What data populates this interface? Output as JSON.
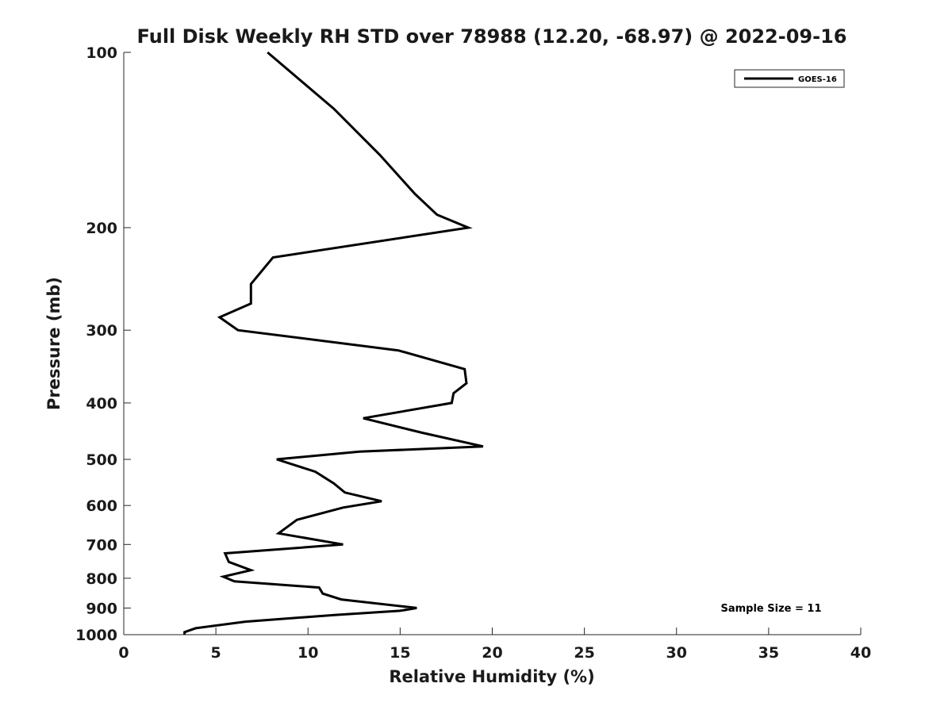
{
  "chart_data": {
    "type": "line",
    "title": "Full Disk Weekly RH STD over 78988 (12.20, -68.97) @ 2022-09-16",
    "xlabel": "Relative Humidity (%)",
    "ylabel": "Pressure (mb)",
    "xlim": [
      0,
      40
    ],
    "ylim": [
      100,
      1000
    ],
    "y_scale": "log",
    "y_reversed": true,
    "x_ticks": [
      0,
      5,
      10,
      15,
      20,
      25,
      30,
      35,
      40
    ],
    "y_ticks": [
      100,
      200,
      300,
      400,
      500,
      600,
      700,
      800,
      900,
      1000
    ],
    "grid": false,
    "legend_position": "top-right",
    "annotation": "Sample Size = 11",
    "colors": {
      "line": "#000000",
      "axis": "#262626"
    },
    "series": [
      {
        "name": "GOES-16",
        "points": [
          [
            7.8,
            100
          ],
          [
            11.4,
            125
          ],
          [
            13.9,
            150
          ],
          [
            15.8,
            175
          ],
          [
            17.0,
            190
          ],
          [
            18.7,
            200
          ],
          [
            8.1,
            225
          ],
          [
            6.9,
            250
          ],
          [
            6.9,
            270
          ],
          [
            5.2,
            285
          ],
          [
            6.2,
            300
          ],
          [
            14.9,
            325
          ],
          [
            18.5,
            350
          ],
          [
            18.6,
            370
          ],
          [
            17.9,
            385
          ],
          [
            17.8,
            400
          ],
          [
            13.0,
            425
          ],
          [
            16.2,
            450
          ],
          [
            19.5,
            475
          ],
          [
            12.8,
            485
          ],
          [
            8.3,
            500
          ],
          [
            10.4,
            525
          ],
          [
            11.4,
            550
          ],
          [
            12.0,
            570
          ],
          [
            14.0,
            590
          ],
          [
            11.9,
            605
          ],
          [
            9.4,
            635
          ],
          [
            8.4,
            670
          ],
          [
            11.9,
            700
          ],
          [
            5.5,
            725
          ],
          [
            5.7,
            750
          ],
          [
            6.9,
            775
          ],
          [
            5.4,
            795
          ],
          [
            6.0,
            810
          ],
          [
            10.6,
            830
          ],
          [
            10.8,
            850
          ],
          [
            11.8,
            870
          ],
          [
            15.9,
            900
          ],
          [
            15.0,
            910
          ],
          [
            11.5,
            925
          ],
          [
            6.6,
            950
          ],
          [
            3.9,
            975
          ],
          [
            3.3,
            990
          ],
          [
            3.3,
            1000
          ]
        ]
      }
    ]
  }
}
